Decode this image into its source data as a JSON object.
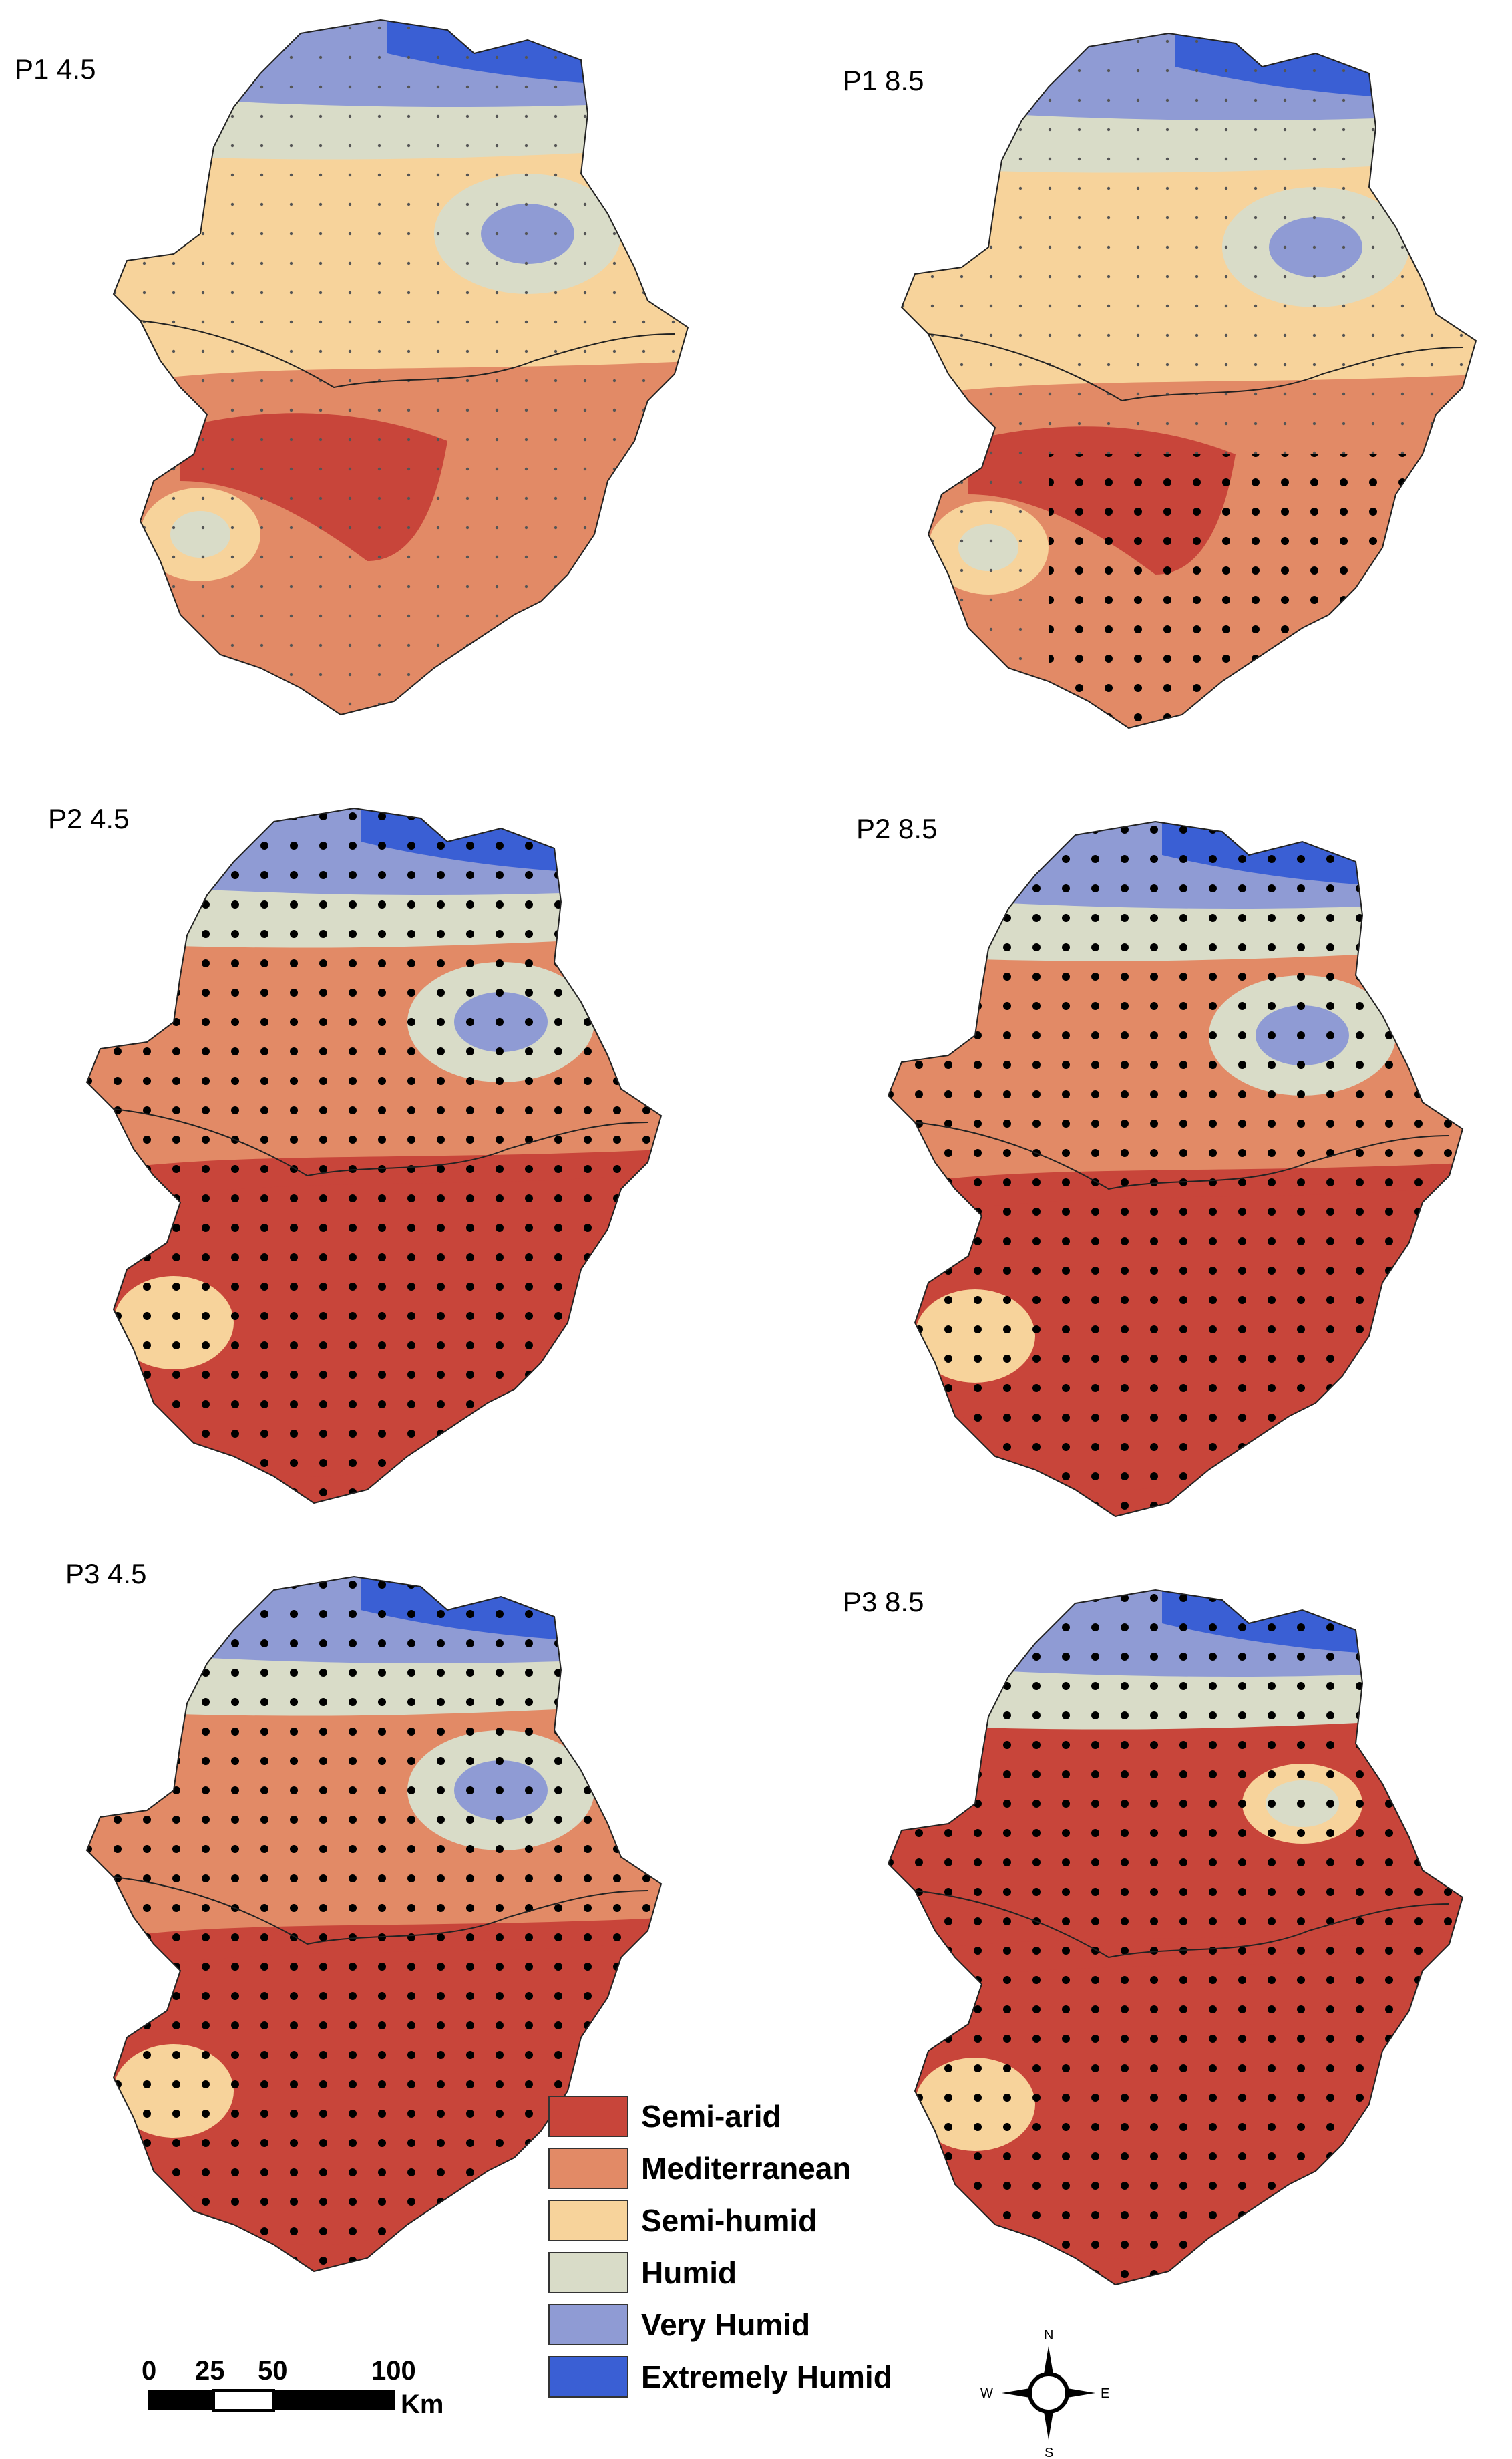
{
  "panels": [
    {
      "label": "P1 4.5",
      "scenario": "P1 4.5"
    },
    {
      "label": "P1 8.5",
      "scenario": "P1 8.5"
    },
    {
      "label": "P2 4.5",
      "scenario": "P2 4.5"
    },
    {
      "label": "P2 8.5",
      "scenario": "P2 8.5"
    },
    {
      "label": "P3 4.5",
      "scenario": "P3 4.5"
    },
    {
      "label": "P3 8.5",
      "scenario": "P3 8.5"
    }
  ],
  "legend": {
    "items": [
      {
        "label": "Semi-arid",
        "color": "#c8453a"
      },
      {
        "label": "Mediterranean",
        "color": "#e28a66"
      },
      {
        "label": "Semi-humid",
        "color": "#f7d39b"
      },
      {
        "label": "Humid",
        "color": "#d9dcc8"
      },
      {
        "label": "Very Humid",
        "color": "#8f9bd4"
      },
      {
        "label": "Extremely Humid",
        "color": "#3a5fd4"
      }
    ]
  },
  "scale_bar": {
    "ticks": [
      "0",
      "25",
      "50",
      "100"
    ],
    "unit": "Km"
  },
  "compass": {
    "n": "N",
    "s": "S",
    "e": "E",
    "w": "W"
  }
}
